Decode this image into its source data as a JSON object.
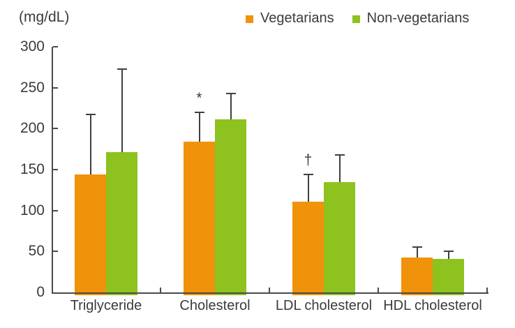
{
  "header": {
    "unit_label": "(mg/dL)"
  },
  "chart_data": {
    "type": "bar",
    "title": "",
    "ylabel": "(mg/dL)",
    "xlabel": "",
    "ylim": [
      0,
      300
    ],
    "yticks": [
      0,
      50,
      100,
      150,
      200,
      250,
      300
    ],
    "grid": false,
    "legend_position": "top-right",
    "axis_color": "#4a4a4a",
    "text_color": "#3b3b3b",
    "categories": [
      "Triglyceride",
      "Cholesterol",
      "LDL cholesterol",
      "HDL cholesterol"
    ],
    "series": [
      {
        "name": "Vegetarians",
        "color": "#F0920A",
        "values": [
          144,
          184,
          111,
          43
        ],
        "error_plus": [
          73,
          36,
          33,
          12
        ]
      },
      {
        "name": "Non-vegetarians",
        "color": "#8DC21F",
        "values": [
          171,
          211,
          135,
          41
        ],
        "error_plus": [
          102,
          32,
          33,
          9
        ]
      }
    ],
    "annotations": [
      {
        "category": "Cholesterol",
        "series": "Vegetarians",
        "symbol": "*"
      },
      {
        "category": "LDL cholesterol",
        "series": "Vegetarians",
        "symbol": "†"
      }
    ]
  }
}
